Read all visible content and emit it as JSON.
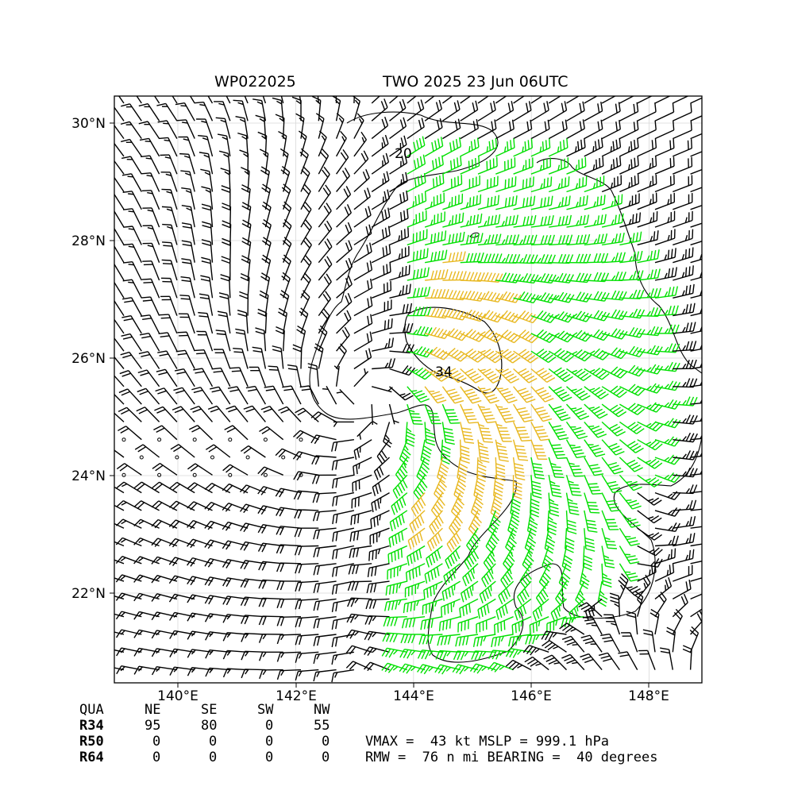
{
  "title": {
    "storm_id": "WP022025",
    "valid": "TWO 2025 23 Jun 06UTC"
  },
  "map": {
    "lon_range": [
      139.0,
      148.9
    ],
    "lat_range": [
      20.5,
      30.5
    ],
    "x_ticks": [
      "140°E",
      "142°E",
      "144°E",
      "146°E",
      "148°E"
    ],
    "y_ticks": [
      "30°N",
      "28°N",
      "26°N",
      "24°N",
      "22°N"
    ],
    "grid": true,
    "contour_labels": [
      "20",
      "34"
    ],
    "barb_colors": {
      "below_34": "#000000",
      "34_to_49": "#00e000",
      "50_plus": "#e8b820"
    }
  },
  "wind_radii": {
    "header": [
      "QUA",
      "NE",
      "SE",
      "SW",
      "NW"
    ],
    "rows": [
      {
        "label": "R34",
        "values": [
          "95",
          "80",
          "0",
          "55"
        ]
      },
      {
        "label": "R50",
        "values": [
          "0",
          "0",
          "0",
          "0"
        ]
      },
      {
        "label": "R64",
        "values": [
          "0",
          "0",
          "0",
          "0"
        ]
      }
    ]
  },
  "summary": {
    "line1": "VMAX =  43 kt MSLP = 999.1 hPa",
    "line2": "RMW =  76 n mi BEARING =  40 degrees"
  }
}
